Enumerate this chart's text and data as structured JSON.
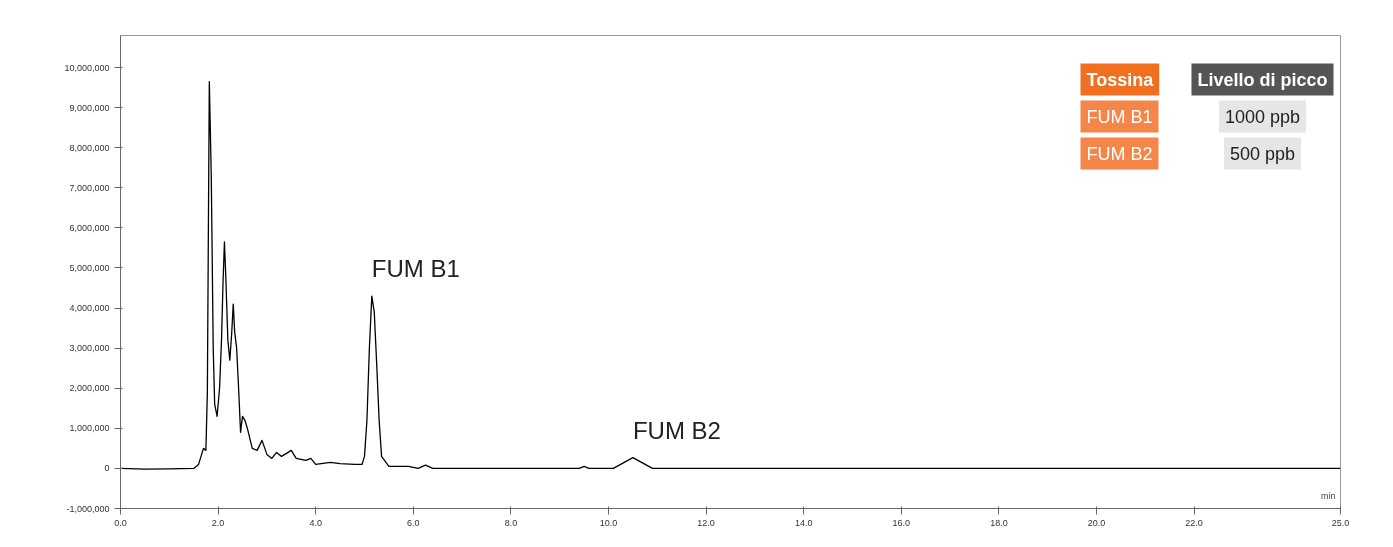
{
  "chart_data": {
    "type": "line",
    "xlabel": "min",
    "x": [
      0,
      0.5,
      1.0,
      1.5,
      1.6,
      1.7,
      1.75,
      1.78,
      1.82,
      1.86,
      1.9,
      1.93,
      1.98,
      2.03,
      2.07,
      2.1,
      2.13,
      2.16,
      2.2,
      2.24,
      2.28,
      2.31,
      2.34,
      2.38,
      2.42,
      2.46,
      2.5,
      2.55,
      2.6,
      2.7,
      2.8,
      2.9,
      3.0,
      3.1,
      3.2,
      3.3,
      3.5,
      3.6,
      3.8,
      3.9,
      4.0,
      4.3,
      4.5,
      4.8,
      4.95,
      5.0,
      5.05,
      5.1,
      5.15,
      5.2,
      5.25,
      5.3,
      5.35,
      5.5,
      5.7,
      5.9,
      6.1,
      6.25,
      6.4,
      7.0,
      9.4,
      9.5,
      9.6,
      10.1,
      10.5,
      10.9,
      12.0,
      25.0
    ],
    "series": [
      {
        "color": "#000000",
        "values": [
          0,
          -20000,
          -10000,
          0,
          100000,
          500000,
          450000,
          1900000,
          9650000,
          7300000,
          3000000,
          1600000,
          1300000,
          2000000,
          3200000,
          4600000,
          5650000,
          4700000,
          3200000,
          2700000,
          3400000,
          4100000,
          3400000,
          3000000,
          2000000,
          900000,
          1300000,
          1200000,
          1000000,
          500000,
          450000,
          700000,
          350000,
          250000,
          400000,
          300000,
          450000,
          250000,
          200000,
          250000,
          100000,
          150000,
          120000,
          100000,
          100000,
          300000,
          1200000,
          3000000,
          4300000,
          3900000,
          2600000,
          1200000,
          300000,
          50000,
          50000,
          50000,
          0,
          80000,
          0,
          0,
          0,
          50000,
          0,
          0,
          270000,
          0,
          0,
          0
        ]
      }
    ],
    "xlim": [
      0,
      25
    ],
    "ylim": [
      -1000000,
      10800000
    ],
    "xticks": [
      {
        "value": 0,
        "label": "0.0"
      },
      {
        "value": 2,
        "label": "2.0"
      },
      {
        "value": 4,
        "label": "4.0"
      },
      {
        "value": 6,
        "label": "6.0"
      },
      {
        "value": 8,
        "label": "8.0"
      },
      {
        "value": 10,
        "label": "10.0"
      },
      {
        "value": 12,
        "label": "12.0"
      },
      {
        "value": 14,
        "label": "14.0"
      },
      {
        "value": 16,
        "label": "16.0"
      },
      {
        "value": 18,
        "label": "18.0"
      },
      {
        "value": 20,
        "label": "20.0"
      },
      {
        "value": 22,
        "label": "22.0"
      },
      {
        "value": 25,
        "label": "25.0"
      }
    ],
    "yticks": [
      {
        "value": -1000000,
        "label": "-1,000,000"
      },
      {
        "value": 0,
        "label": "0"
      },
      {
        "value": 1000000,
        "label": "1,000,000"
      },
      {
        "value": 2000000,
        "label": "2,000,000"
      },
      {
        "value": 3000000,
        "label": "3,000,000"
      },
      {
        "value": 4000000,
        "label": "4,000,000"
      },
      {
        "value": 5000000,
        "label": "5,000,000"
      },
      {
        "value": 6000000,
        "label": "6,000,000"
      },
      {
        "value": 7000000,
        "label": "7,000,000"
      },
      {
        "value": 8000000,
        "label": "8,000,000"
      },
      {
        "value": 9000000,
        "label": "9,000,000"
      },
      {
        "value": 10000000,
        "label": "10,000,000"
      }
    ],
    "annotations": [
      {
        "text": "FUM B1",
        "x": 5.15,
        "y": 4300000
      },
      {
        "text": "FUM B2",
        "x": 10.5,
        "y": 270000
      },
      "Tossina",
      "Livello di picco",
      "FUM B1",
      "1000 ppb",
      "FUM B2",
      "500 ppb"
    ],
    "grid": false
  }
}
